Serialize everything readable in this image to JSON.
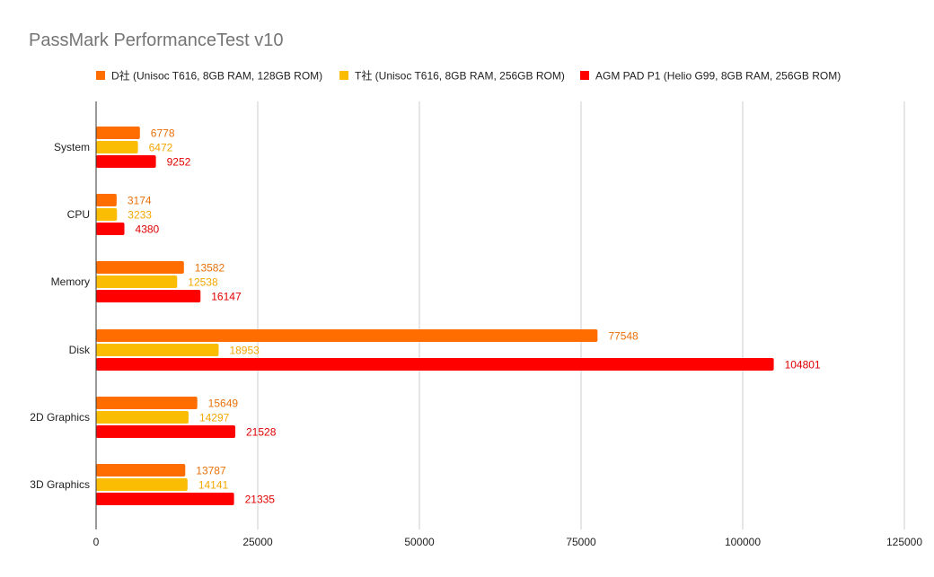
{
  "chart_data": {
    "type": "bar",
    "orientation": "horizontal",
    "title": "PassMark PerformanceTest v10",
    "xlabel": "",
    "ylabel": "",
    "xlim": [
      0,
      125000
    ],
    "xticks": [
      0,
      25000,
      50000,
      75000,
      100000,
      125000
    ],
    "grid": true,
    "legend_position": "top",
    "categories": [
      "System",
      "CPU",
      "Memory",
      "Disk",
      "2D Graphics",
      "3D Graphics"
    ],
    "series": [
      {
        "name": "D社 (Unisoc T616, 8GB RAM, 128GB ROM)",
        "color": "#ff6d01",
        "label_color": "#e8710a",
        "values": [
          6778,
          3174,
          13582,
          77548,
          15649,
          13787
        ]
      },
      {
        "name": "T社 (Unisoc T616, 8GB RAM, 256GB ROM)",
        "color": "#fbbc04",
        "label_color": "#f4a700",
        "values": [
          6472,
          3233,
          12538,
          18953,
          14297,
          14141
        ]
      },
      {
        "name": "AGM PAD P1 (Helio G99, 8GB RAM, 256GB ROM)",
        "color": "#ff0000",
        "label_color": "#e00000",
        "values": [
          9252,
          4380,
          16147,
          104801,
          21528,
          21335
        ]
      }
    ]
  }
}
